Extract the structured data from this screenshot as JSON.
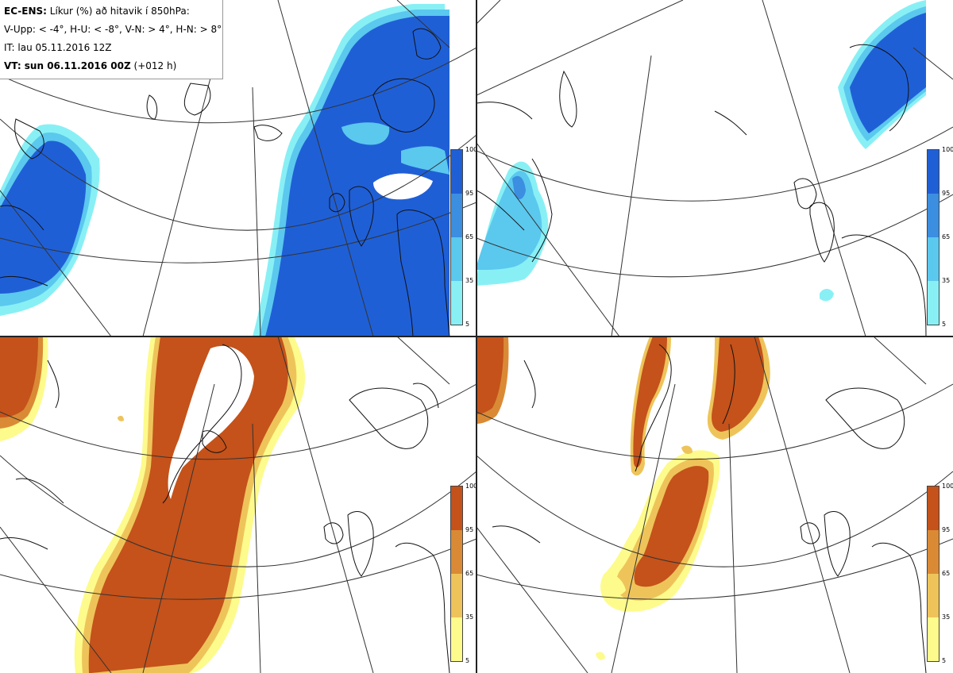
{
  "header": {
    "line1_bold": "EC-ENS:",
    "line1_text": " Líkur (%) að hitavik í 850hPa:",
    "line2": "V-Upp: < -4°, H-U: < -8°, V-N: > 4°, H-N: > 8°",
    "line3": "IT: lau 05.11.2016 12Z",
    "line4_bold": "VT: sun 06.11.2016 00Z",
    "line4_text": " (+012 h)"
  },
  "panels": [
    {
      "id": "V-Upp",
      "palette": "blue"
    },
    {
      "id": "H-U",
      "palette": "blue"
    },
    {
      "id": "V-N",
      "palette": "orange"
    },
    {
      "id": "H-N",
      "palette": "orange"
    }
  ],
  "colorbar": {
    "ticks": [
      "100",
      "95",
      "65",
      "35",
      "5"
    ],
    "blue_colors": [
      "#1f5fd6",
      "#3b8ee0",
      "#5bc8ee",
      "#88f0f5"
    ],
    "orange_colors": [
      "#c4521a",
      "#da8a35",
      "#eec45a",
      "#fdfb8c"
    ]
  }
}
